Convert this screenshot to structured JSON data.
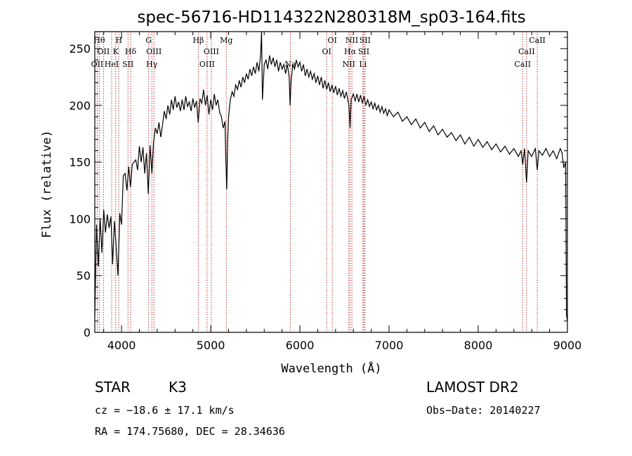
{
  "chart_data": {
    "type": "line",
    "title": "spec-56716-HD114322N280318M_sp03-164.fits",
    "xlabel": "Wavelength (Å)",
    "ylabel": "Flux (relative)",
    "xlim": [
      3700,
      9000
    ],
    "ylim": [
      0,
      265
    ],
    "x_ticks": [
      4000,
      5000,
      6000,
      7000,
      8000,
      9000
    ],
    "y_ticks": [
      0,
      50,
      100,
      150,
      200,
      250
    ],
    "grid": false,
    "colors": {
      "spectrum": "#000000",
      "line_marker": "#b22222"
    },
    "series": [
      {
        "points": [
          [
            3700,
            15
          ],
          [
            3720,
            95
          ],
          [
            3740,
            58
          ],
          [
            3760,
            100
          ],
          [
            3780,
            70
          ],
          [
            3800,
            108
          ],
          [
            3820,
            88
          ],
          [
            3840,
            104
          ],
          [
            3860,
            92
          ],
          [
            3880,
            102
          ],
          [
            3900,
            60
          ],
          [
            3920,
            98
          ],
          [
            3940,
            75
          ],
          [
            3960,
            50
          ],
          [
            3980,
            105
          ],
          [
            4000,
            95
          ],
          [
            4020,
            138
          ],
          [
            4040,
            140
          ],
          [
            4060,
            125
          ],
          [
            4080,
            146
          ],
          [
            4100,
            128
          ],
          [
            4120,
            148
          ],
          [
            4140,
            150
          ],
          [
            4160,
            152
          ],
          [
            4180,
            143
          ],
          [
            4200,
            164
          ],
          [
            4220,
            150
          ],
          [
            4240,
            163
          ],
          [
            4260,
            140
          ],
          [
            4280,
            158
          ],
          [
            4300,
            122
          ],
          [
            4320,
            165
          ],
          [
            4340,
            140
          ],
          [
            4360,
            168
          ],
          [
            4380,
            180
          ],
          [
            4400,
            175
          ],
          [
            4420,
            185
          ],
          [
            4440,
            172
          ],
          [
            4460,
            183
          ],
          [
            4480,
            195
          ],
          [
            4500,
            188
          ],
          [
            4520,
            200
          ],
          [
            4540,
            192
          ],
          [
            4560,
            205
          ],
          [
            4580,
            196
          ],
          [
            4600,
            208
          ],
          [
            4620,
            198
          ],
          [
            4640,
            203
          ],
          [
            4660,
            195
          ],
          [
            4680,
            205
          ],
          [
            4700,
            196
          ],
          [
            4720,
            208
          ],
          [
            4740,
            199
          ],
          [
            4760,
            203
          ],
          [
            4780,
            195
          ],
          [
            4800,
            206
          ],
          [
            4820,
            198
          ],
          [
            4840,
            204
          ],
          [
            4860,
            185
          ],
          [
            4880,
            206
          ],
          [
            4900,
            202
          ],
          [
            4920,
            214
          ],
          [
            4940,
            200
          ],
          [
            4960,
            209
          ],
          [
            4980,
            192
          ],
          [
            5000,
            205
          ],
          [
            5020,
            196
          ],
          [
            5040,
            210
          ],
          [
            5060,
            200
          ],
          [
            5080,
            205
          ],
          [
            5100,
            194
          ],
          [
            5120,
            190
          ],
          [
            5140,
            180
          ],
          [
            5160,
            186
          ],
          [
            5170,
            150
          ],
          [
            5180,
            126
          ],
          [
            5190,
            170
          ],
          [
            5200,
            190
          ],
          [
            5220,
            205
          ],
          [
            5240,
            212
          ],
          [
            5260,
            208
          ],
          [
            5280,
            218
          ],
          [
            5300,
            214
          ],
          [
            5320,
            222
          ],
          [
            5340,
            216
          ],
          [
            5360,
            225
          ],
          [
            5380,
            220
          ],
          [
            5400,
            228
          ],
          [
            5420,
            223
          ],
          [
            5440,
            232
          ],
          [
            5460,
            226
          ],
          [
            5480,
            234
          ],
          [
            5500,
            228
          ],
          [
            5520,
            238
          ],
          [
            5540,
            230
          ],
          [
            5560,
            245
          ],
          [
            5570,
            265
          ],
          [
            5580,
            205
          ],
          [
            5600,
            236
          ],
          [
            5620,
            240
          ],
          [
            5640,
            232
          ],
          [
            5660,
            244
          ],
          [
            5680,
            236
          ],
          [
            5700,
            242
          ],
          [
            5720,
            234
          ],
          [
            5740,
            240
          ],
          [
            5760,
            230
          ],
          [
            5780,
            238
          ],
          [
            5800,
            232
          ],
          [
            5820,
            236
          ],
          [
            5840,
            228
          ],
          [
            5860,
            236
          ],
          [
            5880,
            225
          ],
          [
            5890,
            200
          ],
          [
            5900,
            220
          ],
          [
            5920,
            236
          ],
          [
            5940,
            232
          ],
          [
            5960,
            240
          ],
          [
            5980,
            234
          ],
          [
            6000,
            238
          ],
          [
            6020,
            230
          ],
          [
            6040,
            236
          ],
          [
            6060,
            226
          ],
          [
            6080,
            232
          ],
          [
            6100,
            225
          ],
          [
            6120,
            230
          ],
          [
            6140,
            223
          ],
          [
            6160,
            228
          ],
          [
            6180,
            220
          ],
          [
            6200,
            226
          ],
          [
            6220,
            218
          ],
          [
            6240,
            225
          ],
          [
            6260,
            215
          ],
          [
            6280,
            222
          ],
          [
            6300,
            214
          ],
          [
            6320,
            220
          ],
          [
            6340,
            212
          ],
          [
            6360,
            218
          ],
          [
            6380,
            211
          ],
          [
            6400,
            217
          ],
          [
            6420,
            209
          ],
          [
            6440,
            215
          ],
          [
            6460,
            208
          ],
          [
            6480,
            213
          ],
          [
            6500,
            206
          ],
          [
            6520,
            212
          ],
          [
            6540,
            204
          ],
          [
            6550,
            200
          ],
          [
            6563,
            180
          ],
          [
            6575,
            205
          ],
          [
            6600,
            210
          ],
          [
            6620,
            204
          ],
          [
            6640,
            210
          ],
          [
            6660,
            203
          ],
          [
            6680,
            209
          ],
          [
            6700,
            202
          ],
          [
            6720,
            208
          ],
          [
            6740,
            200
          ],
          [
            6760,
            205
          ],
          [
            6780,
            199
          ],
          [
            6800,
            203
          ],
          [
            6820,
            197
          ],
          [
            6840,
            202
          ],
          [
            6860,
            196
          ],
          [
            6880,
            200
          ],
          [
            6900,
            194
          ],
          [
            6920,
            199
          ],
          [
            6940,
            193
          ],
          [
            6960,
            197
          ],
          [
            6980,
            191
          ],
          [
            7000,
            196
          ],
          [
            7050,
            190
          ],
          [
            7100,
            194
          ],
          [
            7150,
            186
          ],
          [
            7200,
            190
          ],
          [
            7250,
            183
          ],
          [
            7300,
            188
          ],
          [
            7350,
            180
          ],
          [
            7400,
            185
          ],
          [
            7450,
            177
          ],
          [
            7500,
            182
          ],
          [
            7550,
            174
          ],
          [
            7600,
            179
          ],
          [
            7650,
            172
          ],
          [
            7700,
            176
          ],
          [
            7750,
            169
          ],
          [
            7800,
            174
          ],
          [
            7850,
            166
          ],
          [
            7900,
            172
          ],
          [
            7950,
            164
          ],
          [
            8000,
            170
          ],
          [
            8050,
            163
          ],
          [
            8100,
            168
          ],
          [
            8150,
            161
          ],
          [
            8200,
            166
          ],
          [
            8250,
            159
          ],
          [
            8300,
            164
          ],
          [
            8350,
            157
          ],
          [
            8400,
            162
          ],
          [
            8450,
            155
          ],
          [
            8480,
            160
          ],
          [
            8498,
            148
          ],
          [
            8520,
            162
          ],
          [
            8542,
            132
          ],
          [
            8560,
            160
          ],
          [
            8600,
            155
          ],
          [
            8640,
            162
          ],
          [
            8662,
            143
          ],
          [
            8680,
            160
          ],
          [
            8720,
            156
          ],
          [
            8760,
            162
          ],
          [
            8800,
            155
          ],
          [
            8840,
            160
          ],
          [
            8880,
            153
          ],
          [
            8920,
            162
          ],
          [
            8940,
            158
          ],
          [
            8960,
            145
          ],
          [
            8980,
            150
          ],
          [
            8990,
            15
          ],
          [
            9000,
            10
          ]
        ]
      }
    ],
    "lines": [
      {
        "x": 3727,
        "label": "OII",
        "row": 3
      },
      {
        "x": 3750,
        "label": "Hθ",
        "row": 1
      },
      {
        "x": 3797,
        "label": "OII",
        "row": 2
      },
      {
        "x": 3889,
        "label": "HeI",
        "row": 3
      },
      {
        "x": 3934,
        "label": "K",
        "row": 2
      },
      {
        "x": 3969,
        "label": "H",
        "row": 1
      },
      {
        "x": 4072,
        "label": "SII",
        "row": 3
      },
      {
        "x": 4102,
        "label": "Hδ",
        "row": 2
      },
      {
        "x": 4304,
        "label": "G",
        "row": 1
      },
      {
        "x": 4340,
        "label": "Hγ",
        "row": 3
      },
      {
        "x": 4363,
        "label": "OIII",
        "row": 2
      },
      {
        "x": 4861,
        "label": "Hβ",
        "row": 1
      },
      {
        "x": 4959,
        "label": "OIII",
        "row": 3
      },
      {
        "x": 5007,
        "label": "OIII",
        "row": 2
      },
      {
        "x": 5175,
        "label": "Mg",
        "row": 1
      },
      {
        "x": 5893,
        "label": "Na",
        "row": 3
      },
      {
        "x": 6300,
        "label": "OI",
        "row": 2
      },
      {
        "x": 6363,
        "label": "OI",
        "row": 1
      },
      {
        "x": 6548,
        "label": "NII",
        "row": 3
      },
      {
        "x": 6563,
        "label": "Hα",
        "row": 2
      },
      {
        "x": 6583,
        "label": "NII",
        "row": 1
      },
      {
        "x": 6707,
        "label": "Li",
        "row": 3
      },
      {
        "x": 6716,
        "label": "SII",
        "row": 2
      },
      {
        "x": 6731,
        "label": "SII",
        "row": 1
      },
      {
        "x": 8498,
        "label": "CaII",
        "row": 3
      },
      {
        "x": 8542,
        "label": "CaII",
        "row": 2
      },
      {
        "x": 8662,
        "label": "CaII",
        "row": 1
      }
    ]
  },
  "info": {
    "class": "STAR",
    "subclass": "K3",
    "survey": "LAMOST DR2",
    "cz": "cz = −18.6 ± 17.1 km/s",
    "obs_date": "Obs−Date: 20140227",
    "coords": "RA = 174.75680, DEC =  28.34636"
  }
}
